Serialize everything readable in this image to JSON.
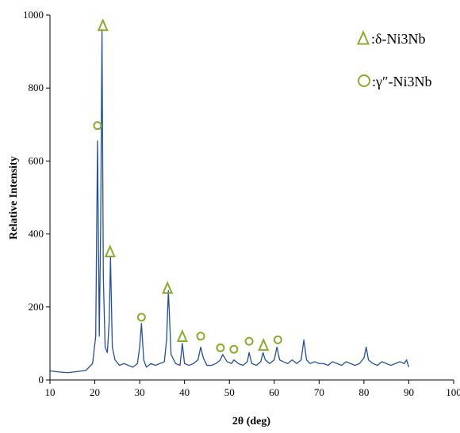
{
  "chart_data": {
    "type": "line",
    "title": "",
    "xlabel": "2θ (deg)",
    "ylabel": "Relative Intensity",
    "xlim": [
      10,
      100
    ],
    "ylim": [
      0,
      1000
    ],
    "xticks": [
      10,
      20,
      30,
      40,
      50,
      60,
      70,
      80,
      90,
      100
    ],
    "yticks": [
      0,
      200,
      400,
      600,
      800,
      1000
    ],
    "grid": false,
    "legend_position": "top-right",
    "line_color": "#2150a0",
    "marker_color": "#8aab2c",
    "series": [
      {
        "values_x": [
          10,
          12,
          14,
          16,
          18,
          19.5,
          20.2,
          20.6,
          21.0,
          21.3,
          21.6,
          21.9,
          22.3,
          22.8,
          23.2,
          23.5,
          23.9,
          24.5,
          25.5,
          26.5,
          27.5,
          28.5,
          29.5,
          30.0,
          30.4,
          30.9,
          31.5,
          32.5,
          33.5,
          34.5,
          35.5,
          36.0,
          36.4,
          37.0,
          38.0,
          39.0,
          39.5,
          40.0,
          41.0,
          42.0,
          43.0,
          43.6,
          44.2,
          45.0,
          46.0,
          47.0,
          48.0,
          48.5,
          49.5,
          50.5,
          51.0,
          52.0,
          53.0,
          54.0,
          54.4,
          55.0,
          56.0,
          57.0,
          57.5,
          58.0,
          59.0,
          60.0,
          60.6,
          61.2,
          62.0,
          63.0,
          64.0,
          65.0,
          66.0,
          66.6,
          67.2,
          68.0,
          69.0,
          70.0,
          71.0,
          72.0,
          73.0,
          74.0,
          75.0,
          76.0,
          77.0,
          78.0,
          79.0,
          80.0,
          80.5,
          81.0,
          82.0,
          83.0,
          84.0,
          85.0,
          86.0,
          87.0,
          88.0,
          89.0,
          89.5,
          90.0
        ],
        "values_y": [
          25,
          22,
          20,
          23,
          26,
          45,
          120,
          655,
          120,
          420,
          960,
          280,
          90,
          75,
          160,
          335,
          90,
          55,
          40,
          45,
          40,
          35,
          45,
          90,
          155,
          55,
          35,
          45,
          40,
          45,
          50,
          110,
          245,
          70,
          45,
          40,
          100,
          45,
          40,
          45,
          55,
          90,
          60,
          40,
          40,
          45,
          55,
          70,
          50,
          45,
          55,
          45,
          40,
          50,
          75,
          45,
          40,
          50,
          75,
          55,
          45,
          55,
          90,
          55,
          50,
          45,
          55,
          45,
          55,
          110,
          55,
          45,
          50,
          45,
          45,
          40,
          50,
          45,
          40,
          50,
          45,
          40,
          45,
          60,
          90,
          55,
          45,
          40,
          50,
          45,
          40,
          45,
          50,
          45,
          55,
          35
        ]
      }
    ],
    "legend": [
      {
        "marker": "triangle",
        "label": ":δ-Ni3Nb"
      },
      {
        "marker": "circle",
        "label": ":γ″-Ni3Nb"
      }
    ],
    "annotations": [
      {
        "marker": "triangle",
        "x": 21.8,
        "y": 972
      },
      {
        "marker": "circle",
        "x": 20.6,
        "y": 697
      },
      {
        "marker": "triangle",
        "x": 23.4,
        "y": 352
      },
      {
        "marker": "triangle",
        "x": 36.2,
        "y": 252
      },
      {
        "marker": "circle",
        "x": 30.4,
        "y": 172
      },
      {
        "marker": "triangle",
        "x": 39.5,
        "y": 120
      },
      {
        "marker": "circle",
        "x": 43.6,
        "y": 120
      },
      {
        "marker": "circle",
        "x": 48.0,
        "y": 88
      },
      {
        "marker": "circle",
        "x": 51.0,
        "y": 84
      },
      {
        "marker": "circle",
        "x": 54.4,
        "y": 106
      },
      {
        "marker": "triangle",
        "x": 57.6,
        "y": 96
      },
      {
        "marker": "circle",
        "x": 60.8,
        "y": 110
      }
    ]
  }
}
